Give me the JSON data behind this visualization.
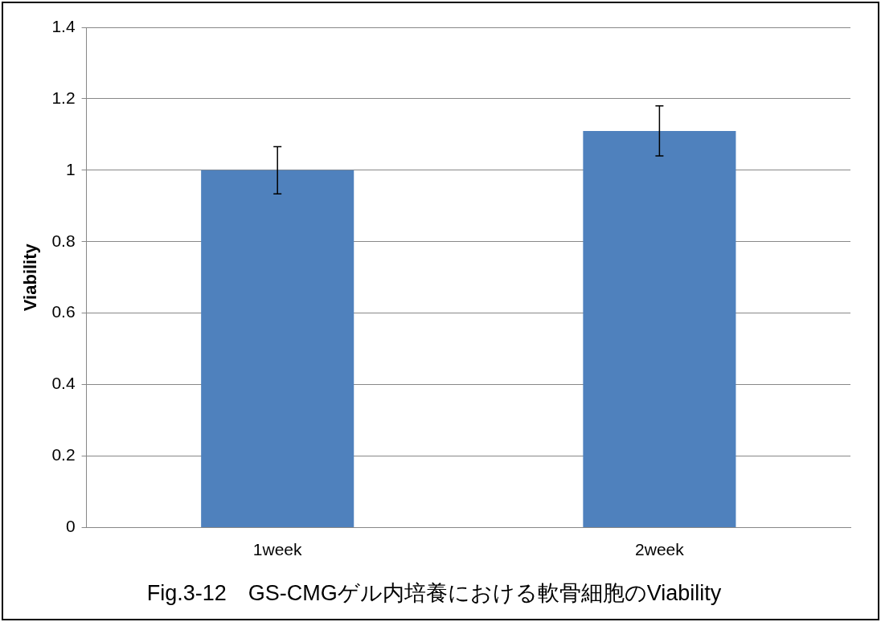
{
  "chart_data": {
    "type": "bar",
    "title": "Fig.3-12　GS-CMGゲル内培養における軟骨細胞のViability",
    "ylabel": "Viability",
    "categories": [
      "1week",
      "2week"
    ],
    "values": [
      1.0,
      1.11
    ],
    "errors": [
      0.066,
      0.07
    ],
    "color": "#4f81bd",
    "ylim": [
      0,
      1.4
    ],
    "yticks": [
      0,
      0.2,
      0.4,
      0.6,
      0.8,
      1,
      1.2,
      1.4
    ],
    "grid": "y"
  }
}
